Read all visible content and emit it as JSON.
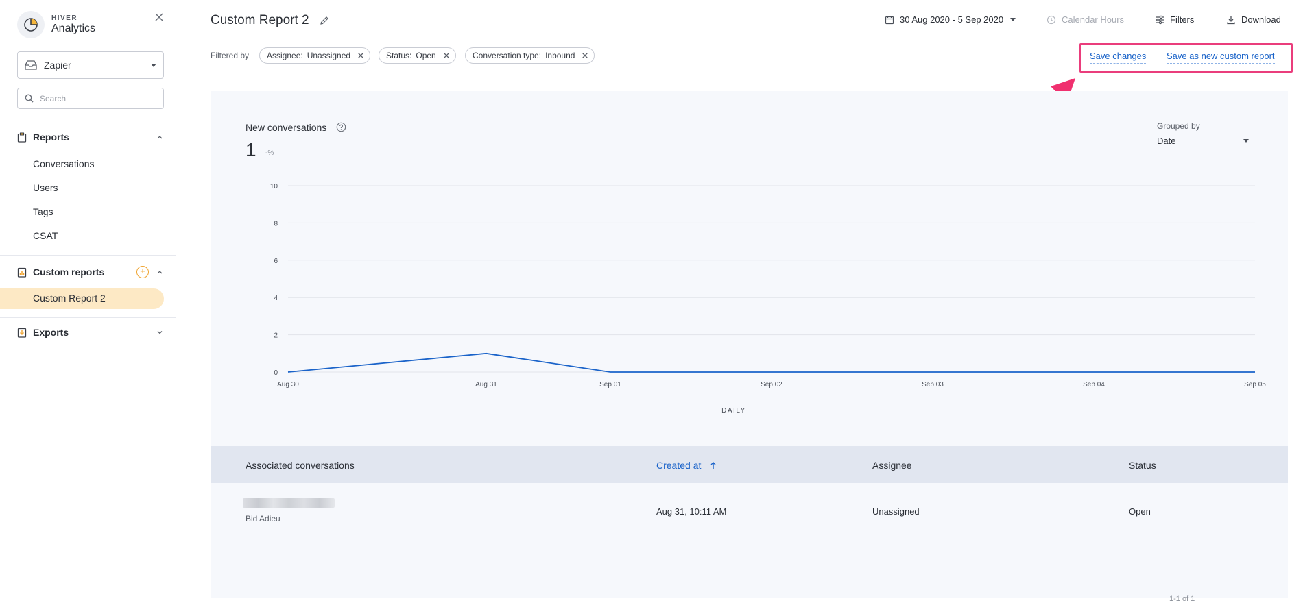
{
  "brand": {
    "small": "HIVER",
    "big": "Analytics"
  },
  "sidebar": {
    "inbox": "Zapier",
    "search_placeholder": "Search",
    "reports_label": "Reports",
    "report_items": [
      "Conversations",
      "Users",
      "Tags",
      "CSAT"
    ],
    "custom_reports_label": "Custom reports",
    "custom_report_items": [
      "Custom Report 2"
    ],
    "exports_label": "Exports"
  },
  "header": {
    "title": "Custom Report 2",
    "date_range": "30 Aug 2020 - 5 Sep 2020",
    "calendar_hours": "Calendar Hours",
    "filters": "Filters",
    "download": "Download"
  },
  "filter_bar": {
    "label": "Filtered by",
    "chips": [
      {
        "key": "Assignee:",
        "value": "Unassigned"
      },
      {
        "key": "Status:",
        "value": "Open"
      },
      {
        "key": "Conversation type:",
        "value": "Inbound"
      }
    ],
    "save_changes": "Save changes",
    "save_as_new": "Save as new custom report"
  },
  "metric": {
    "title": "New conversations",
    "value": "1",
    "delta": "-%",
    "grouped_label": "Grouped by",
    "grouped_value": "Date"
  },
  "chart_data": {
    "type": "line",
    "categories": [
      "Aug 30",
      "Aug 31",
      "Sep 01",
      "Sep 02",
      "Sep 03",
      "Sep 04",
      "Sep 05"
    ],
    "series": [
      {
        "values": [
          0,
          1,
          0,
          0,
          0,
          0,
          0
        ]
      }
    ],
    "ylim": [
      0,
      10
    ],
    "yticks": [
      0,
      2,
      4,
      6,
      8,
      10
    ],
    "xlabel": "DAILY",
    "ylabel": "",
    "color": "#1a63c9",
    "grid": true
  },
  "table": {
    "headers": [
      "Associated conversations",
      "Created at",
      "Assignee",
      "Status"
    ],
    "rows": [
      {
        "subject_sub": "Bid Adieu",
        "created_at": "Aug 31, 10:11 AM",
        "assignee": "Unassigned",
        "status": "Open"
      }
    ],
    "pager": "1-1 of 1"
  },
  "colors": {
    "accent": "#1a63c9",
    "highlight_box": "#ea3d7c",
    "active_bg": "#fde9c5"
  }
}
